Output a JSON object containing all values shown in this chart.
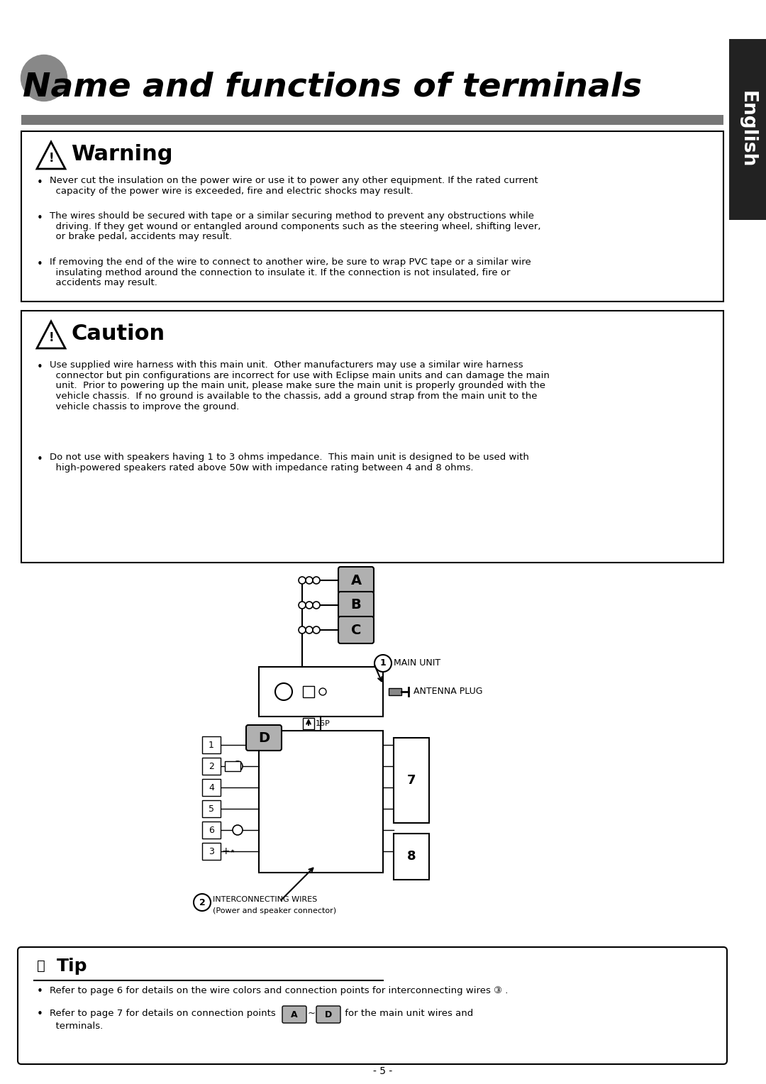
{
  "title": "Name and functions of terminals",
  "bg_color": "#ffffff",
  "sidebar_bg": "#2a2a2a",
  "sidebar_text": "English",
  "warning_title": "Warning",
  "caution_title": "Caution",
  "tip_title": "Tip",
  "footer": "- 5 -",
  "warn_line1": "Never cut the insulation on the power wire or use it to power any other equipment. If the rated current",
  "warn_line1b": "  capacity of the power wire is exceeded, fire and electric shocks may result.",
  "warn_line2": "The wires should be secured with tape or a similar securing method to prevent any obstructions while",
  "warn_line2b": "  driving. If they get wound or entangled around components such as the steering wheel, shifting lever,",
  "warn_line2c": "  or brake pedal, accidents may result.",
  "warn_line3": "If removing the end of the wire to connect to another wire, be sure to wrap PVC tape or a similar wire",
  "warn_line3b": "  insulating method around the connection to insulate it. If the connection is not insulated, fire or",
  "warn_line3c": "  accidents may result.",
  "caut_line1": "Use supplied wire harness with this main unit.  Other manufacturers may use a similar wire harness",
  "caut_line1b": "  connector but pin configurations are incorrect for use with Eclipse main units and can damage the main",
  "caut_line1c": "  unit.  Prior to powering up the main unit, please make sure the main unit is properly grounded with the",
  "caut_line1d": "  vehicle chassis.  If no ground is available to the chassis, add a ground strap from the main unit to the",
  "caut_line1e": "  vehicle chassis to improve the ground.",
  "caut_line2": "Do not use with speakers having 1 to 3 ohms impedance.  This main unit is designed to be used with",
  "caut_line2b": "  high-powered speakers rated above 50w with impedance rating between 4 and 8 ohms.",
  "tip_line1": "Refer to page 6 for details on the wire colors and connection points for interconnecting wires ③ .",
  "tip_line2a": "Refer to page 7 for details on connection points",
  "tip_line2b": " for the main unit wires and",
  "tip_line2c": "  terminals."
}
